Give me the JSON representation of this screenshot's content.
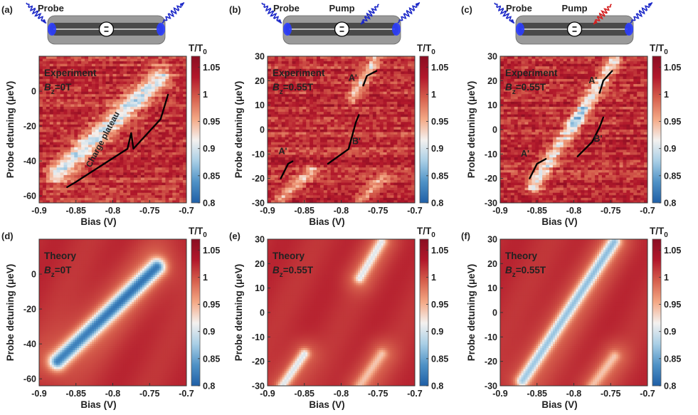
{
  "chart_data": [
    {
      "panel": "(a)",
      "type": "heatmap",
      "kind": "experiment",
      "label": "Experiment",
      "field": "B",
      "field_sub": "z",
      "field_value": "=0T",
      "beams": [
        {
          "name": "Probe",
          "color": "#1c28c8"
        }
      ],
      "x": {
        "label": "Bias (V)",
        "range": [
          -0.9,
          -0.7
        ],
        "ticks": [
          -0.9,
          -0.85,
          -0.8,
          -0.75,
          -0.7
        ]
      },
      "y": {
        "label": "Probe detuning (μeV)",
        "range": [
          -64,
          20
        ],
        "ticks": [
          -60,
          -40,
          -20,
          0
        ]
      },
      "features": [
        {
          "type": "dip",
          "from": [
            -0.875,
            -47
          ],
          "to": [
            -0.735,
            8
          ],
          "depth": 0.12,
          "width": 5
        }
      ],
      "annotations": [
        {
          "text": "Charge plateau"
        }
      ]
    },
    {
      "panel": "(b)",
      "type": "heatmap",
      "kind": "experiment",
      "label": "Experiment",
      "field": "B",
      "field_sub": "z",
      "field_value": "=0.55T",
      "beams": [
        {
          "name": "Probe",
          "color": "#1c28c8"
        },
        {
          "name": "Pump",
          "color": "#1c28c8"
        }
      ],
      "x": {
        "label": "Bias (V)",
        "range": [
          -0.9,
          -0.7
        ],
        "ticks": [
          -0.9,
          -0.85,
          -0.8,
          -0.75,
          -0.7
        ]
      },
      "y": {
        "label": "Probe detuning (μeV)",
        "range": [
          -30,
          30
        ],
        "ticks": [
          -30,
          -20,
          -10,
          0,
          10,
          20,
          30
        ]
      },
      "features": [
        {
          "type": "dip",
          "from": [
            -0.885,
            -29
          ],
          "to": [
            -0.84,
            -17
          ],
          "depth": 0.07,
          "width": 3
        },
        {
          "type": "dip",
          "from": [
            -0.785,
            13
          ],
          "to": [
            -0.755,
            28
          ],
          "depth": 0.08,
          "width": 3
        },
        {
          "type": "dip",
          "from": [
            -0.775,
            -30
          ],
          "to": [
            -0.745,
            -20
          ],
          "depth": 0.06,
          "width": 3
        }
      ],
      "annotations": [
        {
          "text": "A'"
        },
        {
          "text": "A'"
        },
        {
          "text": "B'"
        }
      ]
    },
    {
      "panel": "(c)",
      "type": "heatmap",
      "kind": "experiment",
      "label": "Experiment",
      "field": "B",
      "field_sub": "z",
      "field_value": "=0.55T",
      "beams": [
        {
          "name": "Probe",
          "color": "#1c28c8"
        },
        {
          "name": "Pump",
          "color": "#d42020"
        }
      ],
      "x": {
        "label": "Bias (V)",
        "range": [
          -0.9,
          -0.7
        ],
        "ticks": [
          -0.9,
          -0.85,
          -0.8,
          -0.75,
          -0.7
        ]
      },
      "y": {
        "label": "Probe detuning (μeV)",
        "range": [
          -30,
          30
        ],
        "ticks": [
          -30,
          -20,
          -10,
          0,
          10,
          20,
          30
        ]
      },
      "features": [
        {
          "type": "dip",
          "from": [
            -0.855,
            -23
          ],
          "to": [
            -0.745,
            28
          ],
          "depth": 0.1,
          "width": 3.5
        },
        {
          "type": "dip",
          "from": [
            -0.8,
            2
          ],
          "to": [
            -0.785,
            8
          ],
          "depth": 0.05,
          "width": 3
        }
      ],
      "annotations": [
        {
          "text": "A'"
        },
        {
          "text": "A'"
        },
        {
          "text": "B'"
        }
      ]
    },
    {
      "panel": "(d)",
      "type": "heatmap",
      "kind": "theory",
      "label": "Theory",
      "field": "B",
      "field_sub": "z",
      "field_value": "=0T",
      "beams": [],
      "x": {
        "label": "Bias (V)",
        "range": [
          -0.9,
          -0.7
        ],
        "ticks": [
          -0.9,
          -0.85,
          -0.8,
          -0.75,
          -0.7
        ]
      },
      "y": {
        "label": "Probe detuning (μeV)",
        "range": [
          -64,
          20
        ],
        "ticks": [
          -60,
          -40,
          -20,
          0
        ]
      },
      "features": [
        {
          "type": "dip",
          "from": [
            -0.875,
            -50
          ],
          "to": [
            -0.74,
            4
          ],
          "depth": 0.17,
          "width": 4
        }
      ],
      "annotations": []
    },
    {
      "panel": "(e)",
      "type": "heatmap",
      "kind": "theory",
      "label": "Theory",
      "field": "B",
      "field_sub": "z",
      "field_value": "=0.55T",
      "beams": [],
      "x": {
        "label": "Bias (V)",
        "range": [
          -0.9,
          -0.7
        ],
        "ticks": [
          -0.9,
          -0.85,
          -0.8,
          -0.75,
          -0.7
        ]
      },
      "y": {
        "label": "Probe detuning (μeV)",
        "range": [
          -30,
          30
        ],
        "ticks": [
          -30,
          -20,
          -10,
          0,
          10,
          20,
          30
        ]
      },
      "features": [
        {
          "type": "dip",
          "from": [
            -0.88,
            -30
          ],
          "to": [
            -0.85,
            -17
          ],
          "depth": 0.09,
          "width": 2.5
        },
        {
          "type": "dip",
          "from": [
            -0.775,
            14
          ],
          "to": [
            -0.745,
            29
          ],
          "depth": 0.08,
          "width": 2.5
        },
        {
          "type": "dip",
          "from": [
            -0.775,
            -30
          ],
          "to": [
            -0.745,
            -17
          ],
          "depth": 0.05,
          "width": 2.5
        }
      ],
      "annotations": []
    },
    {
      "panel": "(f)",
      "type": "heatmap",
      "kind": "theory",
      "label": "Theory",
      "field": "B",
      "field_sub": "z",
      "field_value": "=0.55T",
      "beams": [],
      "x": {
        "label": "Bias (V)",
        "range": [
          -0.9,
          -0.7
        ],
        "ticks": [
          -0.9,
          -0.85,
          -0.8,
          -0.75,
          -0.7
        ]
      },
      "y": {
        "label": "Probe detuning (μeV)",
        "range": [
          -30,
          30
        ],
        "ticks": [
          -30,
          -20,
          -10,
          0,
          10,
          20,
          30
        ]
      },
      "features": [
        {
          "type": "dip",
          "from": [
            -0.87,
            -28
          ],
          "to": [
            -0.745,
            29
          ],
          "depth": 0.12,
          "width": 3
        },
        {
          "type": "dip",
          "from": [
            -0.775,
            -30
          ],
          "to": [
            -0.745,
            -18
          ],
          "depth": 0.05,
          "width": 2.5
        }
      ],
      "annotations": []
    }
  ],
  "colorbar": {
    "title": "T/T",
    "title_sub": "0",
    "range": [
      0.8,
      1.07
    ],
    "ticks": [
      0.8,
      0.85,
      0.9,
      0.95,
      1,
      1.05
    ],
    "tick_labels": [
      "0.8",
      "0.85",
      "0.9",
      "0.95",
      "1",
      "1.05"
    ],
    "colors": [
      "#1f5fa6",
      "#4f92c6",
      "#a9cfe6",
      "#f4f1ef",
      "#f4a885",
      "#d6604d",
      "#b2182b",
      "#8a0d22"
    ]
  },
  "colors": {
    "background": "#d9674e",
    "probe_beam": "#1c28c8",
    "pump_red": "#d42020",
    "annotation": "#000000"
  }
}
